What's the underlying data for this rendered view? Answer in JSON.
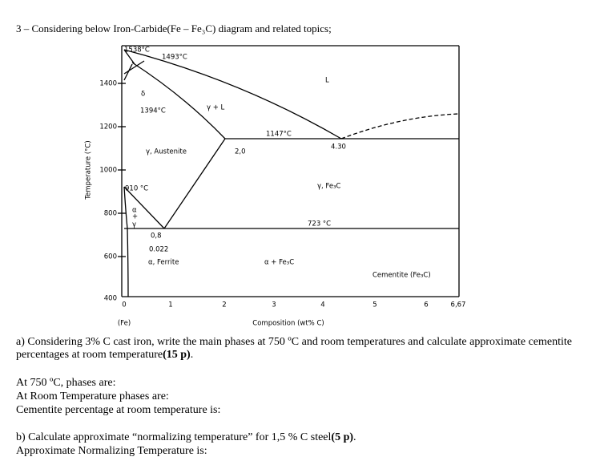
{
  "title": "3 – Considering below Iron-Carbide(Fe – Fe₃C) diagram and related topics;",
  "diagram": {
    "y_axis_label": "Temperature (°C)",
    "x_axis_label": "Composition (wt% C)",
    "fe_label": "(Fe)",
    "y_ticks": [
      "1400",
      "1200",
      "1000",
      "800",
      "600",
      "400"
    ],
    "x_ticks": [
      "0",
      "1",
      "2",
      "3",
      "4",
      "5",
      "6",
      "6,67"
    ],
    "labels": [
      "1538°C",
      "1493°C",
      "δ",
      "1394°C",
      "γ + L",
      "L",
      "1147°C",
      "4.30",
      "2,0",
      "γ, Austenite",
      "910 °C",
      "γ, Fe₃C",
      "α",
      "+",
      "γ",
      "723 °C",
      "0,8",
      "0.022",
      "α, Ferrite",
      "α + Fe₃C",
      "Cementite (Fe₃C)"
    ]
  },
  "question_a": {
    "text": "a) Considering 3% C cast iron, write the main phases at 750 ºC and room temperatures and calculate approximate cementite percentages at room temperature",
    "points": "(15 p)",
    "end": "."
  },
  "answers_a": [
    "At 750 ºC, phases are:",
    "At Room Temperature phases are:",
    "Cementite percentage at room temperature is:"
  ],
  "question_b": {
    "text": "b) Calculate approximate “normalizing temperature” for 1,5 % C steel",
    "points": "(5 p)",
    "end": "."
  },
  "answers_b": [
    "Approximate Normalizing Temperature is:"
  ]
}
